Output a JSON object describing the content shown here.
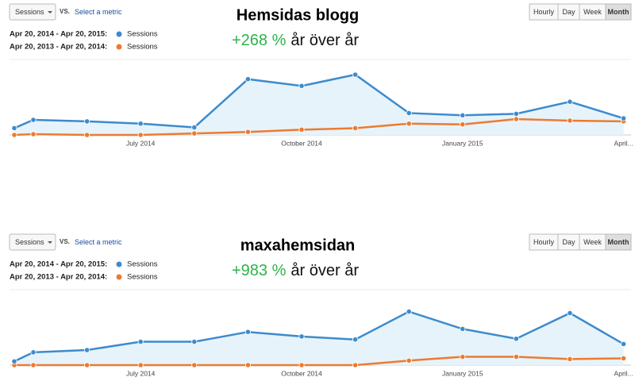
{
  "chart_data": [
    {
      "type": "line",
      "title": "Hemsidas blogg",
      "annotation": {
        "value": "+268 %",
        "text": "år över år"
      },
      "metric": "Sessions",
      "vs": "VS.",
      "select_metric": "Select a metric",
      "buttons": [
        "Hourly",
        "Day",
        "Week",
        "Month"
      ],
      "active_button": "Month",
      "categories": [
        null,
        null,
        null,
        "July 2014",
        null,
        null,
        "October 2014",
        null,
        null,
        "January 2015",
        null,
        null,
        "April..."
      ],
      "ylim": [
        0,
        100
      ],
      "grid": true,
      "series": [
        {
          "name": "Sessions",
          "period": "Apr 20, 2014 - Apr 20, 2015:",
          "color": "#3d8bcd",
          "values": [
            9,
            20,
            18,
            15,
            10,
            74,
            65,
            80,
            29,
            26,
            28,
            44,
            22
          ]
        },
        {
          "name": "Sessions",
          "period": "Apr 20, 2013 - Apr 20, 2014:",
          "color": "#ec7b30",
          "values": [
            0,
            1,
            0,
            0,
            2,
            4,
            7,
            9,
            15,
            14,
            21,
            19,
            18
          ]
        }
      ]
    },
    {
      "type": "line",
      "title": "maxahemsidan",
      "annotation": {
        "value": "+983 %",
        "text": "år över år"
      },
      "metric": "Sessions",
      "vs": "VS.",
      "select_metric": "Select a metric",
      "buttons": [
        "Hourly",
        "Day",
        "Week",
        "Month"
      ],
      "active_button": "Month",
      "categories": [
        null,
        null,
        null,
        "July 2014",
        null,
        null,
        "October 2014",
        null,
        null,
        "January 2015",
        null,
        null,
        "April..."
      ],
      "ylim": [
        0,
        100
      ],
      "grid": true,
      "series": [
        {
          "name": "Sessions",
          "period": "Apr 20, 2014 - Apr 20, 2015:",
          "color": "#3d8bcd",
          "values": [
            5,
            17,
            20,
            31,
            31,
            44,
            38,
            34,
            71,
            48,
            35,
            69,
            28
          ]
        },
        {
          "name": "Sessions",
          "period": "Apr 20, 2013 - Apr 20, 2014:",
          "color": "#ec7b30",
          "values": [
            0,
            0,
            0,
            0,
            0,
            0,
            0,
            0,
            6,
            11,
            11,
            8,
            9
          ]
        }
      ]
    }
  ]
}
